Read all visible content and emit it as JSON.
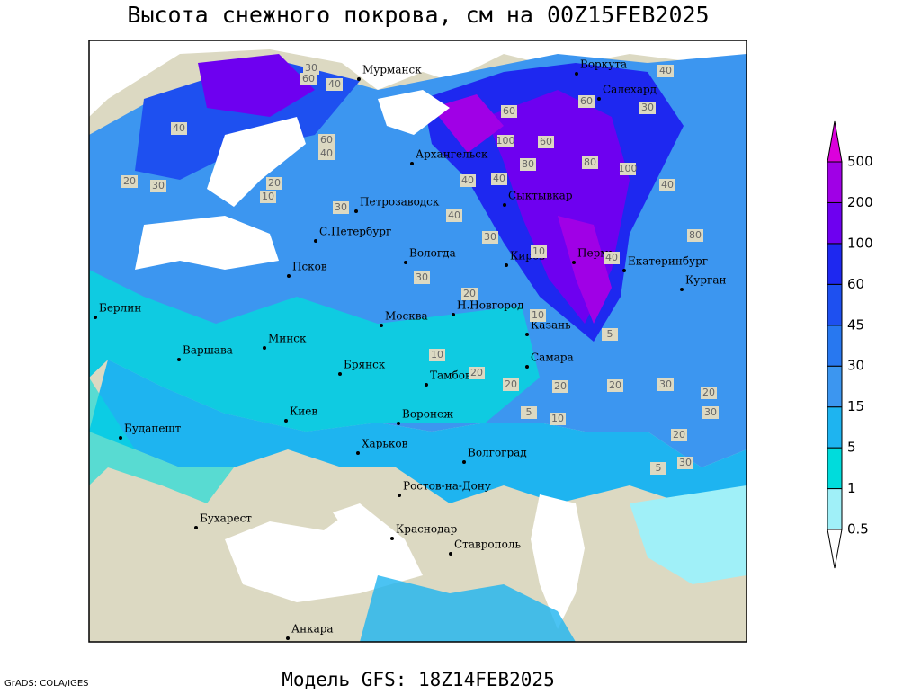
{
  "title": "Высота снежного покрова, см на 00Z15FEB2025",
  "footer": "Модель GFS: 18Z14FEB2025",
  "credit": "GrADS: COLA/IGES",
  "colorbar": {
    "levels": [
      0.5,
      1,
      5,
      15,
      30,
      45,
      60,
      100,
      200,
      500
    ],
    "colors": [
      "#ffffff",
      "#a0f0f8",
      "#00dcdc",
      "#1eb4f0",
      "#3c96f0",
      "#2878f0",
      "#1e50f0",
      "#1e28f0",
      "#6e00f0",
      "#a000e6",
      "#dc00dc"
    ]
  },
  "cities": [
    "Мурманск",
    "Воркута",
    "Салехард",
    "Архангельск",
    "Сыктывкар",
    "Петрозаводск",
    "С.Петербург",
    "Вологда",
    "Киров",
    "Пермь",
    "Екатеринбург",
    "Курган",
    "Псков",
    "Н.Новгород",
    "Казань",
    "Москва",
    "Минск",
    "Берлин",
    "Варшава",
    "Брянск",
    "Тамбов",
    "Самара",
    "Киев",
    "Воронеж",
    "Будапешт",
    "Харьков",
    "Волгоград",
    "Ростов-на-Дону",
    "Бухарест",
    "Краснодар",
    "Ставрополь",
    "Анкара"
  ],
  "contour_labels": [
    30,
    60,
    40,
    40,
    60,
    40,
    20,
    30,
    10,
    20,
    30,
    60,
    100,
    60,
    80,
    100,
    80,
    40,
    40,
    80,
    40,
    40,
    30,
    40,
    30,
    20,
    10,
    10,
    5,
    20,
    30,
    20,
    30,
    20,
    20,
    10,
    5,
    10,
    5,
    30,
    20,
    20,
    60,
    40,
    30
  ]
}
